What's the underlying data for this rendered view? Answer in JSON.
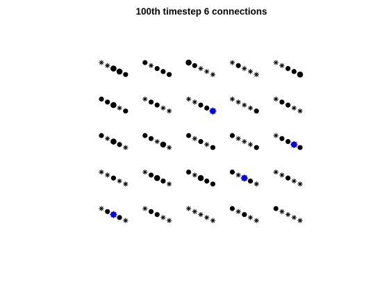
{
  "chart_data": {
    "type": "scatter",
    "title": "100th timestep 6 connections",
    "grid_rows": 5,
    "grid_cols": 5,
    "cells_per_group": 5,
    "axes_visible": false,
    "marker_key": {
      "d": "dot",
      "s": "asterisk",
      "D": "large dot",
      "B": "highlighted large dot"
    },
    "groups": [
      [
        "s",
        "s",
        "D",
        "D",
        "d"
      ],
      [
        "d",
        "s",
        "d",
        "d",
        "d"
      ],
      [
        "D",
        "d",
        "s",
        "s",
        "s"
      ],
      [
        "s",
        "d",
        "s",
        "s",
        "s"
      ],
      [
        "s",
        "s",
        "d",
        "d",
        "D"
      ],
      [
        "d",
        "d",
        "D",
        "s",
        "d"
      ],
      [
        "s",
        "d",
        "d",
        "s",
        "s"
      ],
      [
        "s",
        "s",
        "d",
        "d",
        "B"
      ],
      [
        "s",
        "s",
        "s",
        "s",
        "d"
      ],
      [
        "s",
        "d",
        "d",
        "s",
        "s"
      ],
      [
        "d",
        "s",
        "D",
        "d",
        "s"
      ],
      [
        "d",
        "d",
        "s",
        "D",
        "s"
      ],
      [
        "d",
        "s",
        "d",
        "s",
        "d"
      ],
      [
        "d",
        "s",
        "s",
        "s",
        "d"
      ],
      [
        "s",
        "d",
        "d",
        "B",
        "d"
      ],
      [
        "s",
        "s",
        "d",
        "s",
        "s"
      ],
      [
        "s",
        "d",
        "D",
        "d",
        "s"
      ],
      [
        "d",
        "s",
        "D",
        "d",
        "d"
      ],
      [
        "d",
        "s",
        "B",
        "d",
        "s"
      ],
      [
        "s",
        "s",
        "d",
        "s",
        "s"
      ],
      [
        "s",
        "d",
        "B",
        "d",
        "s"
      ],
      [
        "s",
        "d",
        "d",
        "s",
        "s"
      ],
      [
        "s",
        "s",
        "s",
        "s",
        "s"
      ],
      [
        "d",
        "s",
        "d",
        "s",
        "s"
      ],
      [
        "d",
        "s",
        "s",
        "s",
        "s"
      ]
    ],
    "colors": {
      "normal": "#000000",
      "highlight": "#0000ff"
    }
  }
}
